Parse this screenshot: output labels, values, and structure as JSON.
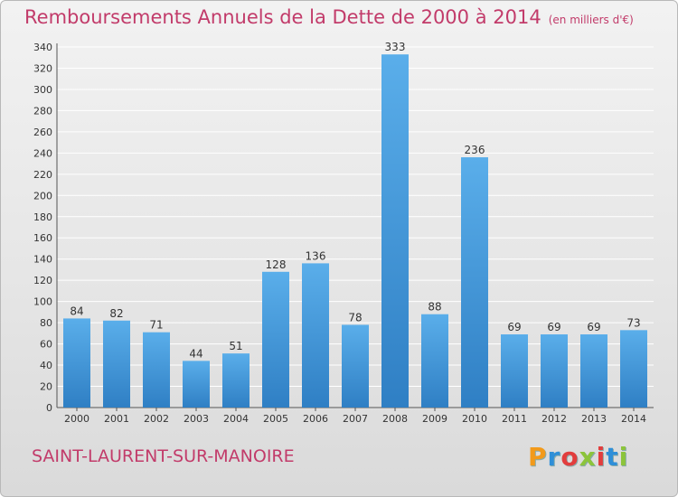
{
  "colors": {
    "title": "#c23b6a",
    "bar_top": "#5aaeea",
    "bar_bottom": "#2f7fc4",
    "grid": "#ffffff",
    "text": "#333333"
  },
  "header": {
    "title": "Remboursements Annuels de la Dette de 2000 à 2014",
    "subtitle": "(en milliers d'€)"
  },
  "footer": {
    "commune": "SAINT-LAURENT-SUR-MANOIRE",
    "logo_text": "Proxiti",
    "logo_colors": [
      "#f29a1b",
      "#2f8fd8",
      "#e23d3d",
      "#8cc43b",
      "#e23d3d",
      "#2f8fd8",
      "#8cc43b"
    ]
  },
  "chart_data": {
    "type": "bar",
    "title": "Remboursements Annuels de la Dette de 2000 à 2014",
    "subtitle": "(en milliers d'€)",
    "xlabel": "",
    "ylabel": "",
    "categories": [
      "2000",
      "2001",
      "2002",
      "2003",
      "2004",
      "2005",
      "2006",
      "2007",
      "2008",
      "2009",
      "2010",
      "2011",
      "2012",
      "2013",
      "2014"
    ],
    "values": [
      84,
      82,
      71,
      44,
      51,
      128,
      136,
      78,
      333,
      88,
      236,
      69,
      69,
      69,
      73
    ],
    "ylim": [
      0,
      340
    ],
    "yticks": [
      0,
      20,
      40,
      60,
      80,
      100,
      120,
      140,
      160,
      180,
      200,
      220,
      240,
      260,
      280,
      300,
      320,
      340
    ],
    "grid": true,
    "legend": "none"
  }
}
